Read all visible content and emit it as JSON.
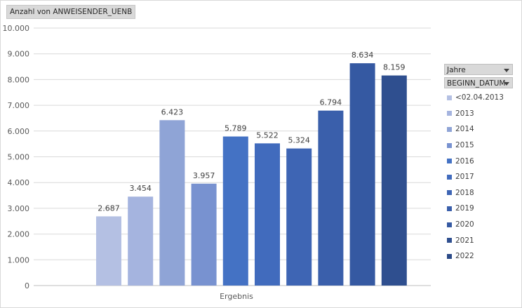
{
  "value_field": "Anzahl von ANWEISENDER_UENB",
  "pivot_fields": {
    "jahre": "Jahre",
    "beginn_datum": "BEGINN_DATUM"
  },
  "chart_data": {
    "type": "bar",
    "categories": [
      "Ergebnis"
    ],
    "ylim": [
      0,
      10000
    ],
    "ytick_labels": [
      "0",
      "1.000",
      "2.000",
      "3.000",
      "4.000",
      "5.000",
      "6.000",
      "7.000",
      "8.000",
      "9.000",
      "10.000"
    ],
    "grid": true,
    "legend_position": "right",
    "series": [
      {
        "name": "<02.04.2013",
        "value": 2687,
        "label": "2.687",
        "color": "#b4c0e3"
      },
      {
        "name": "2013",
        "value": 3454,
        "label": "3.454",
        "color": "#a5b4df"
      },
      {
        "name": "2014",
        "value": 6423,
        "label": "6.423",
        "color": "#8fa4d6"
      },
      {
        "name": "2015",
        "value": 3957,
        "label": "3.957",
        "color": "#7892d0"
      },
      {
        "name": "2016",
        "value": 5789,
        "label": "5.789",
        "color": "#4472c4"
      },
      {
        "name": "2017",
        "value": 5522,
        "label": "5.522",
        "color": "#416bbd"
      },
      {
        "name": "2018",
        "value": 5324,
        "label": "5.324",
        "color": "#3e65b4"
      },
      {
        "name": "2019",
        "value": 6794,
        "label": "6.794",
        "color": "#3a5fab"
      },
      {
        "name": "2020",
        "value": 8634,
        "label": "8.634",
        "color": "#3559a2"
      },
      {
        "name": "2021",
        "value": 8159,
        "label": "8.159",
        "color": "#2f4f8f"
      },
      {
        "name": "2022",
        "value": null,
        "label": "",
        "color": "#2b4a87"
      }
    ]
  }
}
